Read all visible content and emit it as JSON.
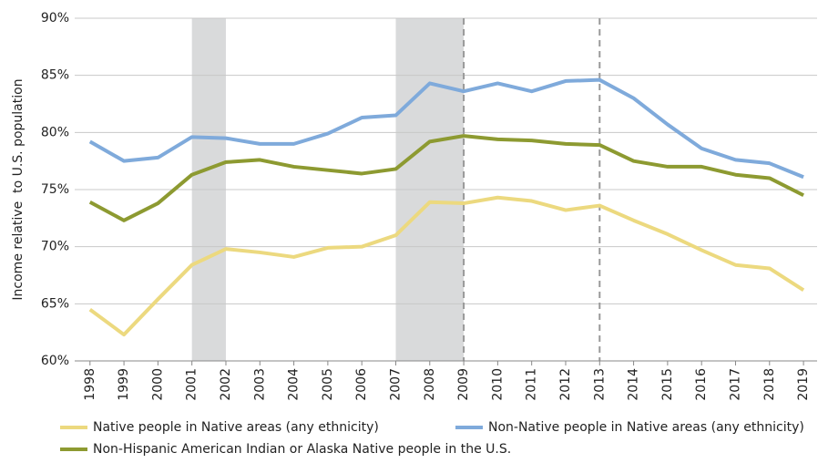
{
  "chart_data": {
    "type": "line",
    "y_label": "Income relative  to U.S. population",
    "x": [
      1998,
      1999,
      2000,
      2001,
      2002,
      2003,
      2004,
      2005,
      2006,
      2007,
      2008,
      2009,
      2010,
      2011,
      2012,
      2013,
      2014,
      2015,
      2016,
      2017,
      2018,
      2019
    ],
    "xlim": [
      1997.55,
      2019.4
    ],
    "xticks": [
      1998,
      1999,
      2000,
      2001,
      2002,
      2003,
      2004,
      2005,
      2006,
      2007,
      2008,
      2009,
      2010,
      2011,
      2012,
      2013,
      2014,
      2015,
      2016,
      2017,
      2018,
      2019
    ],
    "ylim": [
      60,
      90
    ],
    "yticks": [
      {
        "value": 60,
        "label": "60%"
      },
      {
        "value": 65,
        "label": "65%"
      },
      {
        "value": 70,
        "label": "70%"
      },
      {
        "value": 75,
        "label": "75%"
      },
      {
        "value": 80,
        "label": "80%"
      },
      {
        "value": 85,
        "label": "85%"
      },
      {
        "value": 90,
        "label": "90%"
      }
    ],
    "grid": true,
    "shaded_ranges": [
      [
        2001,
        2002
      ],
      [
        2007,
        2009
      ]
    ],
    "dashed_vlines": [
      2009,
      2013
    ],
    "legend": "bottom",
    "series": [
      {
        "name": "Native people in Native areas (any ethnicity)",
        "color": "#ecd97f",
        "values": [
          64.5,
          62.3,
          65.4,
          68.4,
          69.8,
          69.5,
          69.1,
          69.9,
          70.0,
          71.0,
          73.9,
          73.8,
          74.3,
          74.0,
          73.2,
          73.6,
          72.3,
          71.1,
          69.7,
          68.4,
          68.1,
          66.2
        ]
      },
      {
        "name": "Non-Native people in Native areas (any ethnicity)",
        "color": "#7faadb",
        "values": [
          79.2,
          77.5,
          77.8,
          79.6,
          79.5,
          79.0,
          79.0,
          79.9,
          81.3,
          81.5,
          84.3,
          83.6,
          84.3,
          83.6,
          84.5,
          84.6,
          83.0,
          80.7,
          78.6,
          77.6,
          77.3,
          76.1
        ]
      },
      {
        "name": "Non-Hispanic American Indian or Alaska Native people in the U.S.",
        "color": "#8d9a31",
        "values": [
          73.9,
          72.3,
          73.8,
          76.3,
          77.4,
          77.6,
          77.0,
          76.7,
          76.4,
          76.8,
          79.2,
          79.7,
          79.4,
          79.3,
          79.0,
          78.9,
          77.5,
          77.0,
          77.0,
          76.3,
          76.0,
          74.5
        ]
      }
    ]
  }
}
